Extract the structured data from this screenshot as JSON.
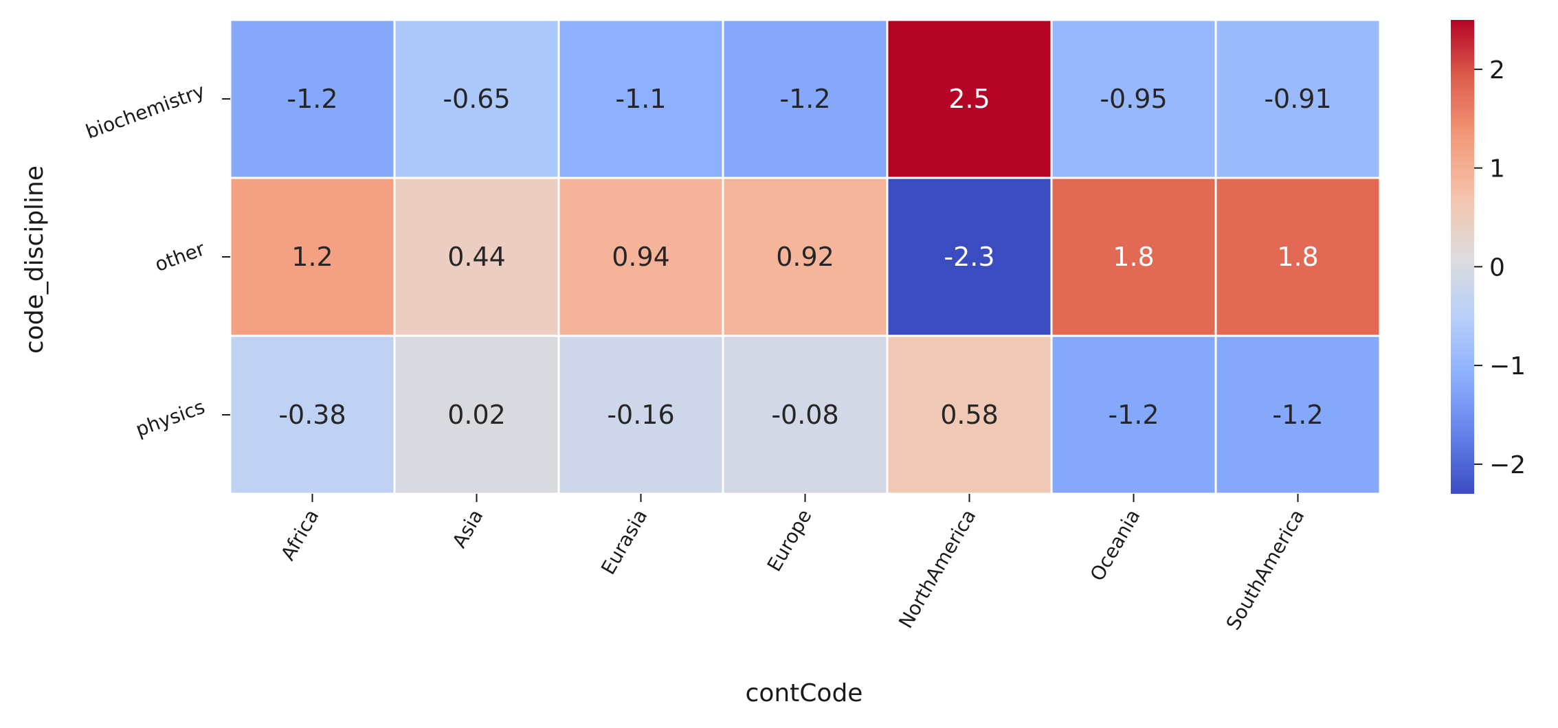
{
  "chart_data": {
    "type": "heatmap",
    "title": "",
    "xlabel": "contCode",
    "ylabel": "code_discipline",
    "x_categories": [
      "Africa",
      "Asia",
      "Eurasia",
      "Europe",
      "NorthAmerica",
      "Oceania",
      "SouthAmerica"
    ],
    "y_categories": [
      "biochemistry",
      "other",
      "physics"
    ],
    "values": [
      [
        -1.2,
        -0.65,
        -1.1,
        -1.2,
        2.5,
        -0.95,
        -0.91
      ],
      [
        1.2,
        0.44,
        0.94,
        0.92,
        -2.3,
        1.8,
        1.8
      ],
      [
        -0.38,
        0.02,
        -0.16,
        -0.08,
        0.58,
        -1.2,
        -1.2
      ]
    ],
    "value_labels": [
      [
        "-1.2",
        "-0.65",
        "-1.1",
        "-1.2",
        "2.5",
        "-0.95",
        "-0.91"
      ],
      [
        "1.2",
        "0.44",
        "0.94",
        "0.92",
        "-2.3",
        "1.8",
        "1.8"
      ],
      [
        "-0.38",
        "0.02",
        "-0.16",
        "-0.08",
        "0.58",
        "-1.2",
        "-1.2"
      ]
    ],
    "colormap": "coolwarm",
    "colorbar": {
      "range": [
        -2.3,
        2.5
      ],
      "ticks": [
        2,
        1,
        0,
        -1,
        -2
      ],
      "tick_labels": [
        "2",
        "1",
        "0",
        "−1",
        "−2"
      ]
    },
    "x_tick_rotation_deg": 60,
    "y_tick_rotation_deg": 20,
    "grid": false,
    "legend": "colorbar-right"
  }
}
